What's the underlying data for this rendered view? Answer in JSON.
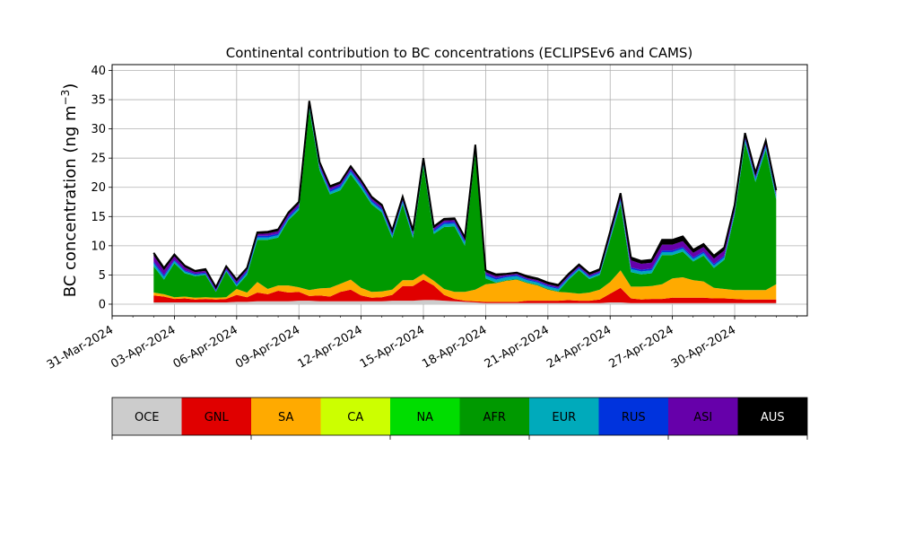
{
  "chart_data": [
    {
      "type": "area",
      "stacked": true,
      "title": "Continental contribution to BC concentrations (ECLIPSEv6 and CAMS)",
      "ylabel": "BC concentration (ng m$^{-3}$)",
      "ylabel_main": "BC concentration (ng m",
      "ylabel_unit_exp": "−3",
      "ylabel_close": ")",
      "xlabel": "",
      "ylim": [
        -2,
        41
      ],
      "xlim": [
        "2024-03-31T00:00",
        "2024-05-03T12:00"
      ],
      "grid": true,
      "y_ticks": [
        0,
        5,
        10,
        15,
        20,
        25,
        30,
        35,
        40
      ],
      "x_ticks": [
        "2024-03-31",
        "2024-04-03",
        "2024-04-06",
        "2024-04-09",
        "2024-04-12",
        "2024-04-15",
        "2024-04-18",
        "2024-04-21",
        "2024-04-24",
        "2024-04-27",
        "2024-04-30"
      ],
      "x_tick_labels": [
        "31-Mar-2024",
        "03-Apr-2024",
        "06-Apr-2024",
        "09-Apr-2024",
        "12-Apr-2024",
        "15-Apr-2024",
        "18-Apr-2024",
        "21-Apr-2024",
        "24-Apr-2024",
        "27-Apr-2024",
        "30-Apr-2024"
      ],
      "x": [
        "2024-04-02T00:00",
        "2024-04-02T12:00",
        "2024-04-03T00:00",
        "2024-04-03T12:00",
        "2024-04-04T00:00",
        "2024-04-04T12:00",
        "2024-04-05T00:00",
        "2024-04-05T12:00",
        "2024-04-06T00:00",
        "2024-04-06T12:00",
        "2024-04-07T00:00",
        "2024-04-07T12:00",
        "2024-04-08T00:00",
        "2024-04-08T12:00",
        "2024-04-09T00:00",
        "2024-04-09T12:00",
        "2024-04-10T00:00",
        "2024-04-10T12:00",
        "2024-04-11T00:00",
        "2024-04-11T12:00",
        "2024-04-12T00:00",
        "2024-04-12T12:00",
        "2024-04-13T00:00",
        "2024-04-13T12:00",
        "2024-04-14T00:00",
        "2024-04-14T12:00",
        "2024-04-15T00:00",
        "2024-04-15T12:00",
        "2024-04-16T00:00",
        "2024-04-16T12:00",
        "2024-04-17T00:00",
        "2024-04-17T12:00",
        "2024-04-18T00:00",
        "2024-04-18T12:00",
        "2024-04-19T00:00",
        "2024-04-19T12:00",
        "2024-04-20T00:00",
        "2024-04-20T12:00",
        "2024-04-21T00:00",
        "2024-04-21T12:00",
        "2024-04-22T00:00",
        "2024-04-22T12:00",
        "2024-04-23T00:00",
        "2024-04-23T12:00",
        "2024-04-24T00:00",
        "2024-04-24T12:00",
        "2024-04-25T00:00",
        "2024-04-25T12:00",
        "2024-04-26T00:00",
        "2024-04-26T12:00",
        "2024-04-27T00:00",
        "2024-04-27T12:00",
        "2024-04-28T00:00",
        "2024-04-28T12:00",
        "2024-04-29T00:00",
        "2024-04-29T12:00",
        "2024-04-30T00:00",
        "2024-04-30T12:00",
        "2024-05-01T00:00",
        "2024-05-01T12:00",
        "2024-05-02T00:00"
      ],
      "series": [
        {
          "name": "OCE",
          "color": "#cccccc",
          "values": [
            0.3,
            0.3,
            0.3,
            0.3,
            0.3,
            0.3,
            0.3,
            0.3,
            0.4,
            0.4,
            0.5,
            0.5,
            0.5,
            0.5,
            0.6,
            0.6,
            0.5,
            0.5,
            0.5,
            0.5,
            0.5,
            0.5,
            0.5,
            0.6,
            0.6,
            0.6,
            0.7,
            0.7,
            0.6,
            0.5,
            0.4,
            0.3,
            0.2,
            0.2,
            0.2,
            0.2,
            0.2,
            0.2,
            0.2,
            0.2,
            0.2,
            0.2,
            0.2,
            0.2,
            0.3,
            0.3,
            0.2,
            0.2,
            0.2,
            0.2,
            0.2,
            0.2,
            0.2,
            0.2,
            0.2,
            0.2,
            0.2,
            0.2,
            0.2,
            0.2,
            0.2
          ]
        },
        {
          "name": "GNL",
          "color": "#e00000",
          "values": [
            1.2,
            1.0,
            0.6,
            0.7,
            0.5,
            0.6,
            0.5,
            0.6,
            1.2,
            0.8,
            1.5,
            1.2,
            1.8,
            1.5,
            1.5,
            0.8,
            1.0,
            0.8,
            1.6,
            2.0,
            1.0,
            0.6,
            0.7,
            1.0,
            2.5,
            2.5,
            3.5,
            2.5,
            1.0,
            0.4,
            0.2,
            0.2,
            0.2,
            0.2,
            0.2,
            0.2,
            0.4,
            0.4,
            0.4,
            0.4,
            0.5,
            0.4,
            0.4,
            0.6,
            1.5,
            2.5,
            0.8,
            0.6,
            0.7,
            0.7,
            0.9,
            0.9,
            0.9,
            0.9,
            0.8,
            0.8,
            0.7,
            0.6,
            0.6,
            0.6,
            0.6
          ]
        },
        {
          "name": "SA",
          "color": "#ffaa00",
          "values": [
            0.5,
            0.4,
            0.3,
            0.3,
            0.3,
            0.3,
            0.3,
            0.3,
            1.0,
            0.8,
            1.8,
            0.9,
            0.9,
            1.2,
            0.8,
            1.0,
            1.2,
            1.5,
            1.4,
            1.7,
            1.3,
            1.0,
            1.0,
            0.9,
            1.0,
            1.0,
            1.0,
            0.8,
            1.0,
            1.2,
            1.5,
            2.0,
            3.0,
            3.2,
            3.6,
            3.8,
            3.0,
            2.6,
            1.9,
            1.5,
            1.3,
            1.2,
            1.4,
            1.7,
            2.0,
            3.0,
            2.0,
            2.2,
            2.2,
            2.5,
            3.3,
            3.5,
            3.0,
            2.8,
            1.8,
            1.6,
            1.5,
            1.6,
            1.6,
            1.6,
            2.6
          ]
        },
        {
          "name": "CA",
          "color": "#ccff00",
          "values": [
            0,
            0,
            0,
            0,
            0,
            0,
            0,
            0,
            0,
            0,
            0,
            0,
            0,
            0,
            0,
            0,
            0,
            0,
            0,
            0,
            0,
            0,
            0,
            0,
            0,
            0,
            0,
            0,
            0,
            0,
            0,
            0,
            0,
            0,
            0,
            0,
            0,
            0,
            0,
            0,
            0,
            0,
            0,
            0,
            0,
            0,
            0,
            0,
            0,
            0,
            0,
            0,
            0,
            0,
            0,
            0,
            0,
            0,
            0,
            0,
            0
          ]
        },
        {
          "name": "NA",
          "color": "#00dd00",
          "values": [
            0,
            0,
            0,
            0,
            0,
            0,
            0,
            0,
            0,
            0,
            0,
            0,
            0,
            0,
            0,
            0,
            0,
            0,
            0,
            0,
            0,
            0,
            0,
            0,
            0,
            0,
            0,
            0,
            0,
            0,
            0,
            0,
            0,
            0,
            0,
            0,
            0,
            0,
            0,
            0,
            0,
            0,
            0,
            0,
            0,
            0,
            0,
            0,
            0,
            0,
            0,
            0,
            0,
            0,
            0,
            0,
            0,
            0,
            0,
            0,
            0
          ]
        },
        {
          "name": "AFR",
          "color": "#009900",
          "values": [
            4.5,
            2.5,
            5.8,
            4.0,
            3.7,
            3.8,
            1.0,
            4.4,
            0.4,
            3.0,
            7.2,
            8.4,
            8.2,
            11.2,
            13.2,
            31.0,
            20.2,
            16.0,
            16.0,
            18.0,
            17.0,
            15.0,
            13.5,
            8.8,
            13.0,
            7.2,
            18.5,
            8.0,
            10.6,
            11.2,
            7.9,
            23.4,
            1.0,
            0.1,
            0.1,
            0.1,
            0.1,
            0.1,
            0.1,
            0.1,
            2.2,
            4.0,
            2.3,
            2.5,
            7.2,
            11.4,
            2.5,
            2.1,
            2.2,
            5.0,
            4.0,
            4.4,
            3.2,
            4.4,
            3.4,
            5.0,
            12.9,
            25.2,
            18.5,
            24.0,
            14.5
          ]
        },
        {
          "name": "EUR",
          "color": "#00aabb",
          "values": [
            0.5,
            0.5,
            0.4,
            0.3,
            0.2,
            0.2,
            0.1,
            0.2,
            0.3,
            0.4,
            0.4,
            0.4,
            0.4,
            0.3,
            0.4,
            0.4,
            0.4,
            0.4,
            0.5,
            0.5,
            0.5,
            0.4,
            0.4,
            0.4,
            0.4,
            0.4,
            0.4,
            0.4,
            0.5,
            0.5,
            0.5,
            0.5,
            0.5,
            0.5,
            0.5,
            0.5,
            0.4,
            0.4,
            0.4,
            0.4,
            0.3,
            0.3,
            0.3,
            0.3,
            0.4,
            0.5,
            0.5,
            0.5,
            0.5,
            0.5,
            0.5,
            0.5,
            0.4,
            0.4,
            0.4,
            0.4,
            0.4,
            0.5,
            0.5,
            0.5,
            0.5
          ]
        },
        {
          "name": "RUS",
          "color": "#0033dd",
          "values": [
            0.3,
            0.3,
            0.2,
            0.2,
            0.2,
            0.2,
            0.2,
            0.2,
            0.3,
            0.3,
            0.3,
            0.3,
            0.3,
            0.3,
            0.3,
            0.3,
            0.3,
            0.3,
            0.3,
            0.3,
            0.3,
            0.3,
            0.3,
            0.3,
            0.3,
            0.3,
            0.3,
            0.3,
            0.3,
            0.3,
            0.3,
            0.3,
            0.3,
            0.3,
            0.2,
            0.2,
            0.2,
            0.2,
            0.2,
            0.2,
            0.2,
            0.2,
            0.2,
            0.2,
            0.2,
            0.3,
            0.3,
            0.3,
            0.3,
            0.3,
            0.3,
            0.3,
            0.3,
            0.3,
            0.3,
            0.3,
            0.3,
            0.3,
            0.3,
            0.3,
            0.3
          ]
        },
        {
          "name": "ASI",
          "color": "#6600aa",
          "values": [
            1.0,
            0.8,
            0.6,
            0.5,
            0.3,
            0.3,
            0.3,
            0.3,
            0.3,
            0.3,
            0.3,
            0.4,
            0.4,
            0.4,
            0.4,
            0.4,
            0.4,
            0.4,
            0.3,
            0.3,
            0.3,
            0.3,
            0.3,
            0.3,
            0.3,
            0.3,
            0.3,
            0.3,
            0.3,
            0.3,
            0.3,
            0.3,
            0.3,
            0.3,
            0.2,
            0.2,
            0.2,
            0.2,
            0.2,
            0.2,
            0.2,
            0.2,
            0.2,
            0.2,
            0.3,
            0.5,
            1.2,
            1.0,
            1.0,
            1.0,
            1.0,
            1.0,
            0.8,
            0.8,
            0.9,
            0.9,
            0.5,
            0.4,
            0.3,
            0.3,
            0.3
          ]
        },
        {
          "name": "AUS",
          "color": "#000000",
          "values": [
            0.5,
            0.4,
            0.3,
            0.3,
            0.2,
            0.3,
            0.2,
            0.2,
            0.3,
            0.2,
            0.3,
            0.3,
            0.3,
            0.3,
            0.3,
            0.3,
            0.3,
            0.3,
            0.3,
            0.3,
            0.3,
            0.3,
            0.3,
            0.3,
            0.3,
            0.3,
            0.3,
            0.3,
            0.3,
            0.3,
            0.3,
            0.3,
            0.3,
            0.3,
            0.2,
            0.2,
            0.3,
            0.3,
            0.3,
            0.3,
            0.3,
            0.3,
            0.3,
            0.3,
            0.5,
            0.5,
            0.5,
            0.5,
            0.5,
            0.8,
            0.8,
            0.8,
            0.5,
            0.5,
            0.5,
            0.5,
            0.5,
            0.5,
            0.5,
            0.5,
            0.5
          ]
        }
      ]
    },
    {
      "type": "legend-colorbar",
      "labels": [
        "OCE",
        "GNL",
        "SA",
        "CA",
        "NA",
        "AFR",
        "EUR",
        "RUS",
        "ASI",
        "AUS"
      ],
      "colors": [
        "#cccccc",
        "#e00000",
        "#ffaa00",
        "#ccff00",
        "#00dd00",
        "#009900",
        "#00aabb",
        "#0033dd",
        "#6600aa",
        "#000000"
      ],
      "label_colors": [
        "#000000",
        "#000000",
        "#000000",
        "#000000",
        "#000000",
        "#000000",
        "#000000",
        "#000000",
        "#000000",
        "#ffffff"
      ]
    }
  ]
}
